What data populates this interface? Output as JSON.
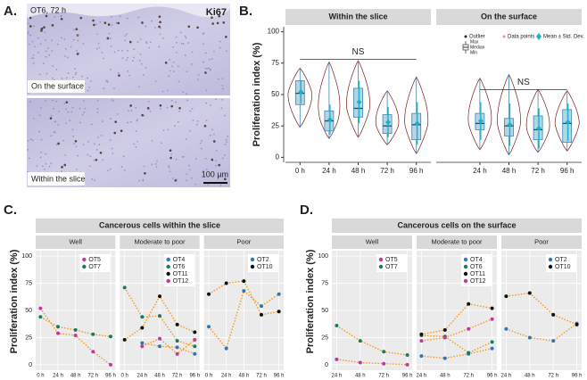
{
  "panel_a": {
    "label": "A.",
    "header": "OT6, 72 h",
    "stain": "Ki67",
    "images": [
      {
        "caption": "On the surface"
      },
      {
        "caption": "Within the slice"
      }
    ],
    "scale_bar": "100 µm"
  },
  "chart_data": [
    {
      "type": "violin",
      "panel_label": "B.",
      "y_label": "Proliferation index (%)",
      "ylim": [
        -4,
        104
      ],
      "yticks": [
        0,
        25,
        50,
        75,
        100
      ],
      "legend": {
        "outlier": "Outlier",
        "max": "Max",
        "median": "Median",
        "min": "Min",
        "points": "Data points",
        "mean": "Mean ± Std. Dev."
      },
      "colors": {
        "box": "#a6cfe3",
        "box_edge": "#3d87ad",
        "violin": "#7a1c1c",
        "mean": "#17b3c8"
      },
      "facets": [
        {
          "name": "Within the slice",
          "categories": [
            "0 h",
            "24 h",
            "48 h",
            "72 h",
            "96 h"
          ],
          "min": [
            24,
            15,
            16,
            10,
            3
          ],
          "q1": [
            42,
            21,
            32,
            19,
            14
          ],
          "median": [
            51,
            29,
            39,
            25,
            26
          ],
          "q3": [
            61,
            37,
            55,
            34,
            35
          ],
          "max": [
            71,
            76,
            77,
            53,
            64
          ],
          "mean": [
            52,
            30,
            44,
            28,
            27
          ],
          "sd": [
            9,
            12,
            17,
            12,
            17
          ],
          "annotation": {
            "text": "NS",
            "y": 78
          }
        },
        {
          "name": "On the surface",
          "categories": [
            null,
            "24 h",
            "48 h",
            "72 h",
            "96 h"
          ],
          "min": [
            null,
            6,
            2,
            4,
            5
          ],
          "q1": [
            null,
            22,
            17,
            14,
            12
          ],
          "median": [
            null,
            27,
            25,
            22,
            27
          ],
          "q3": [
            null,
            35,
            31,
            33,
            38
          ],
          "max": [
            null,
            63,
            66,
            54,
            53
          ],
          "mean": [
            null,
            29,
            26,
            23,
            28
          ],
          "sd": [
            null,
            15,
            17,
            16,
            15
          ],
          "annotation": {
            "text": "NS",
            "y": 54
          }
        }
      ]
    },
    {
      "type": "line",
      "panel_label": "C.",
      "title": "Cancerous cells within the slice",
      "y_label": "Proliferation index (%)",
      "line_color": "#f4991a",
      "categories": [
        "0 h",
        "24 h",
        "48 h",
        "72 h",
        "96 h"
      ],
      "ylim": [
        -5,
        105
      ],
      "yticks": [
        0,
        25,
        50,
        75,
        100
      ],
      "grid": true,
      "facets": [
        {
          "name": "Well",
          "series": [
            {
              "name": "OT5",
              "color": "#c2379e",
              "values": [
                52,
                29,
                27,
                12,
                0
              ]
            },
            {
              "name": "OT7",
              "color": "#1b7a5e",
              "values": [
                44,
                35,
                32,
                28,
                26
              ]
            }
          ]
        },
        {
          "name": "Moderate to poor",
          "series": [
            {
              "name": "OT4",
              "color": "#2a78b8",
              "values": [
                null,
                20,
                17,
                16,
                10
              ]
            },
            {
              "name": "OT6",
              "color": "#1b7a5e",
              "values": [
                71,
                44,
                45,
                22,
                17
              ]
            },
            {
              "name": "OT11",
              "color": "#111111",
              "values": [
                23,
                34,
                63,
                37,
                30
              ]
            },
            {
              "name": "OT12",
              "color": "#c2379e",
              "values": [
                null,
                17,
                24,
                10,
                23
              ]
            }
          ]
        },
        {
          "name": "Poor",
          "series": [
            {
              "name": "OT2",
              "color": "#2a78b8",
              "values": [
                35,
                15,
                68,
                54,
                65
              ]
            },
            {
              "name": "OT10",
              "color": "#111111",
              "values": [
                65,
                75,
                77,
                46,
                49
              ]
            }
          ]
        }
      ]
    },
    {
      "type": "line",
      "panel_label": "D.",
      "title": "Cancerous cells on the surface",
      "y_label": "Proliferation index (%)",
      "line_color": "#f4991a",
      "categories": [
        "24 h",
        "48 h",
        "72 h",
        "96 h"
      ],
      "ylim": [
        -5,
        105
      ],
      "yticks": [
        0,
        25,
        50,
        75,
        100
      ],
      "grid": true,
      "facets": [
        {
          "name": "Well",
          "series": [
            {
              "name": "OT5",
              "color": "#c2379e",
              "values": [
                5,
                2,
                1,
                0
              ]
            },
            {
              "name": "OT7",
              "color": "#1b7a5e",
              "values": [
                36,
                22,
                12,
                9
              ]
            }
          ]
        },
        {
          "name": "Moderate to poor",
          "series": [
            {
              "name": "OT4",
              "color": "#2a78b8",
              "values": [
                8,
                6,
                10,
                15
              ]
            },
            {
              "name": "OT6",
              "color": "#1b7a5e",
              "values": [
                27,
                26,
                11,
                21
              ]
            },
            {
              "name": "OT11",
              "color": "#111111",
              "values": [
                28,
                32,
                56,
                52
              ]
            },
            {
              "name": "OT12",
              "color": "#c2379e",
              "values": [
                22,
                25,
                33,
                42
              ]
            }
          ]
        },
        {
          "name": "Poor",
          "series": [
            {
              "name": "OT2",
              "color": "#2a78b8",
              "values": [
                33,
                25,
                22,
                38
              ]
            },
            {
              "name": "OT10",
              "color": "#111111",
              "values": [
                63,
                66,
                46,
                37
              ]
            }
          ]
        }
      ]
    }
  ]
}
